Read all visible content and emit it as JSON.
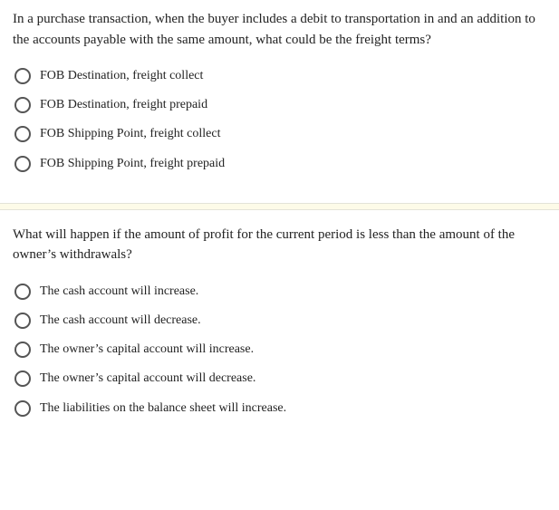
{
  "questions": [
    {
      "prompt": "In a purchase transaction, when the buyer includes a debit to transportation in and an addition to the accounts payable with the same amount, what could be the freight terms?",
      "options": [
        "FOB Destination, freight collect",
        "FOB Destination, freight prepaid",
        "FOB Shipping Point, freight collect",
        "FOB Shipping Point, freight prepaid"
      ]
    },
    {
      "prompt": "What will happen if the amount of profit for the current period is less than the amount of the owner’s withdrawals?",
      "options": [
        "The cash account will increase.",
        "The cash account will decrease.",
        "The owner’s capital account will increase.",
        "The owner’s capital account will decrease.",
        "The liabilities on the balance sheet will increase."
      ]
    }
  ],
  "colors": {
    "text": "#222222",
    "radio_border": "#555555",
    "divider_bg": "#fdfbe8",
    "divider_border": "#e3e3d8",
    "background": "#ffffff"
  },
  "typography": {
    "font_family": "Georgia, 'Times New Roman', serif",
    "question_fontsize": 15,
    "option_fontsize": 14
  }
}
